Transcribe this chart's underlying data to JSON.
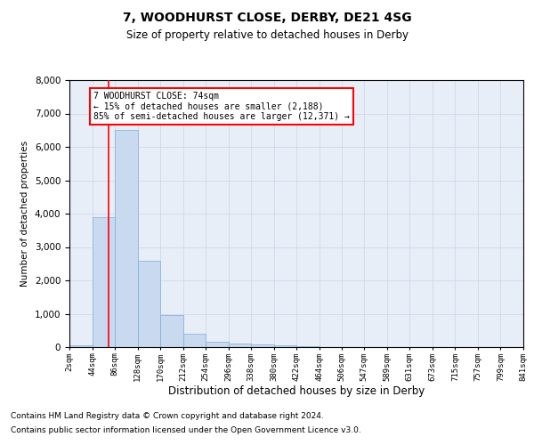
{
  "title": "7, WOODHURST CLOSE, DERBY, DE21 4SG",
  "subtitle": "Size of property relative to detached houses in Derby",
  "xlabel": "Distribution of detached houses by size in Derby",
  "ylabel": "Number of detached properties",
  "footnote1": "Contains HM Land Registry data © Crown copyright and database right 2024.",
  "footnote2": "Contains public sector information licensed under the Open Government Licence v3.0.",
  "bin_edges": [
    2,
    44,
    86,
    128,
    170,
    212,
    254,
    296,
    338,
    380,
    422,
    464,
    506,
    547,
    589,
    631,
    673,
    715,
    757,
    799,
    841
  ],
  "bar_heights": [
    50,
    3900,
    6500,
    2600,
    950,
    400,
    150,
    100,
    80,
    50,
    20,
    10,
    5,
    3,
    2,
    1,
    1,
    0,
    0,
    0
  ],
  "bar_color": "#c9d9f0",
  "bar_edge_color": "#7bafd4",
  "grid_color": "#d0d8e8",
  "background_color": "#e8eef8",
  "red_line_x": 74,
  "annotation_line1": "7 WOODHURST CLOSE: 74sqm",
  "annotation_line2": "← 15% of detached houses are smaller (2,188)",
  "annotation_line3": "85% of semi-detached houses are larger (12,371) →",
  "ylim": [
    0,
    8000
  ],
  "yticks": [
    0,
    1000,
    2000,
    3000,
    4000,
    5000,
    6000,
    7000,
    8000
  ],
  "xtick_labels": [
    "2sqm",
    "44sqm",
    "86sqm",
    "128sqm",
    "170sqm",
    "212sqm",
    "254sqm",
    "296sqm",
    "338sqm",
    "380sqm",
    "422sqm",
    "464sqm",
    "506sqm",
    "547sqm",
    "589sqm",
    "631sqm",
    "673sqm",
    "715sqm",
    "757sqm",
    "799sqm",
    "841sqm"
  ]
}
